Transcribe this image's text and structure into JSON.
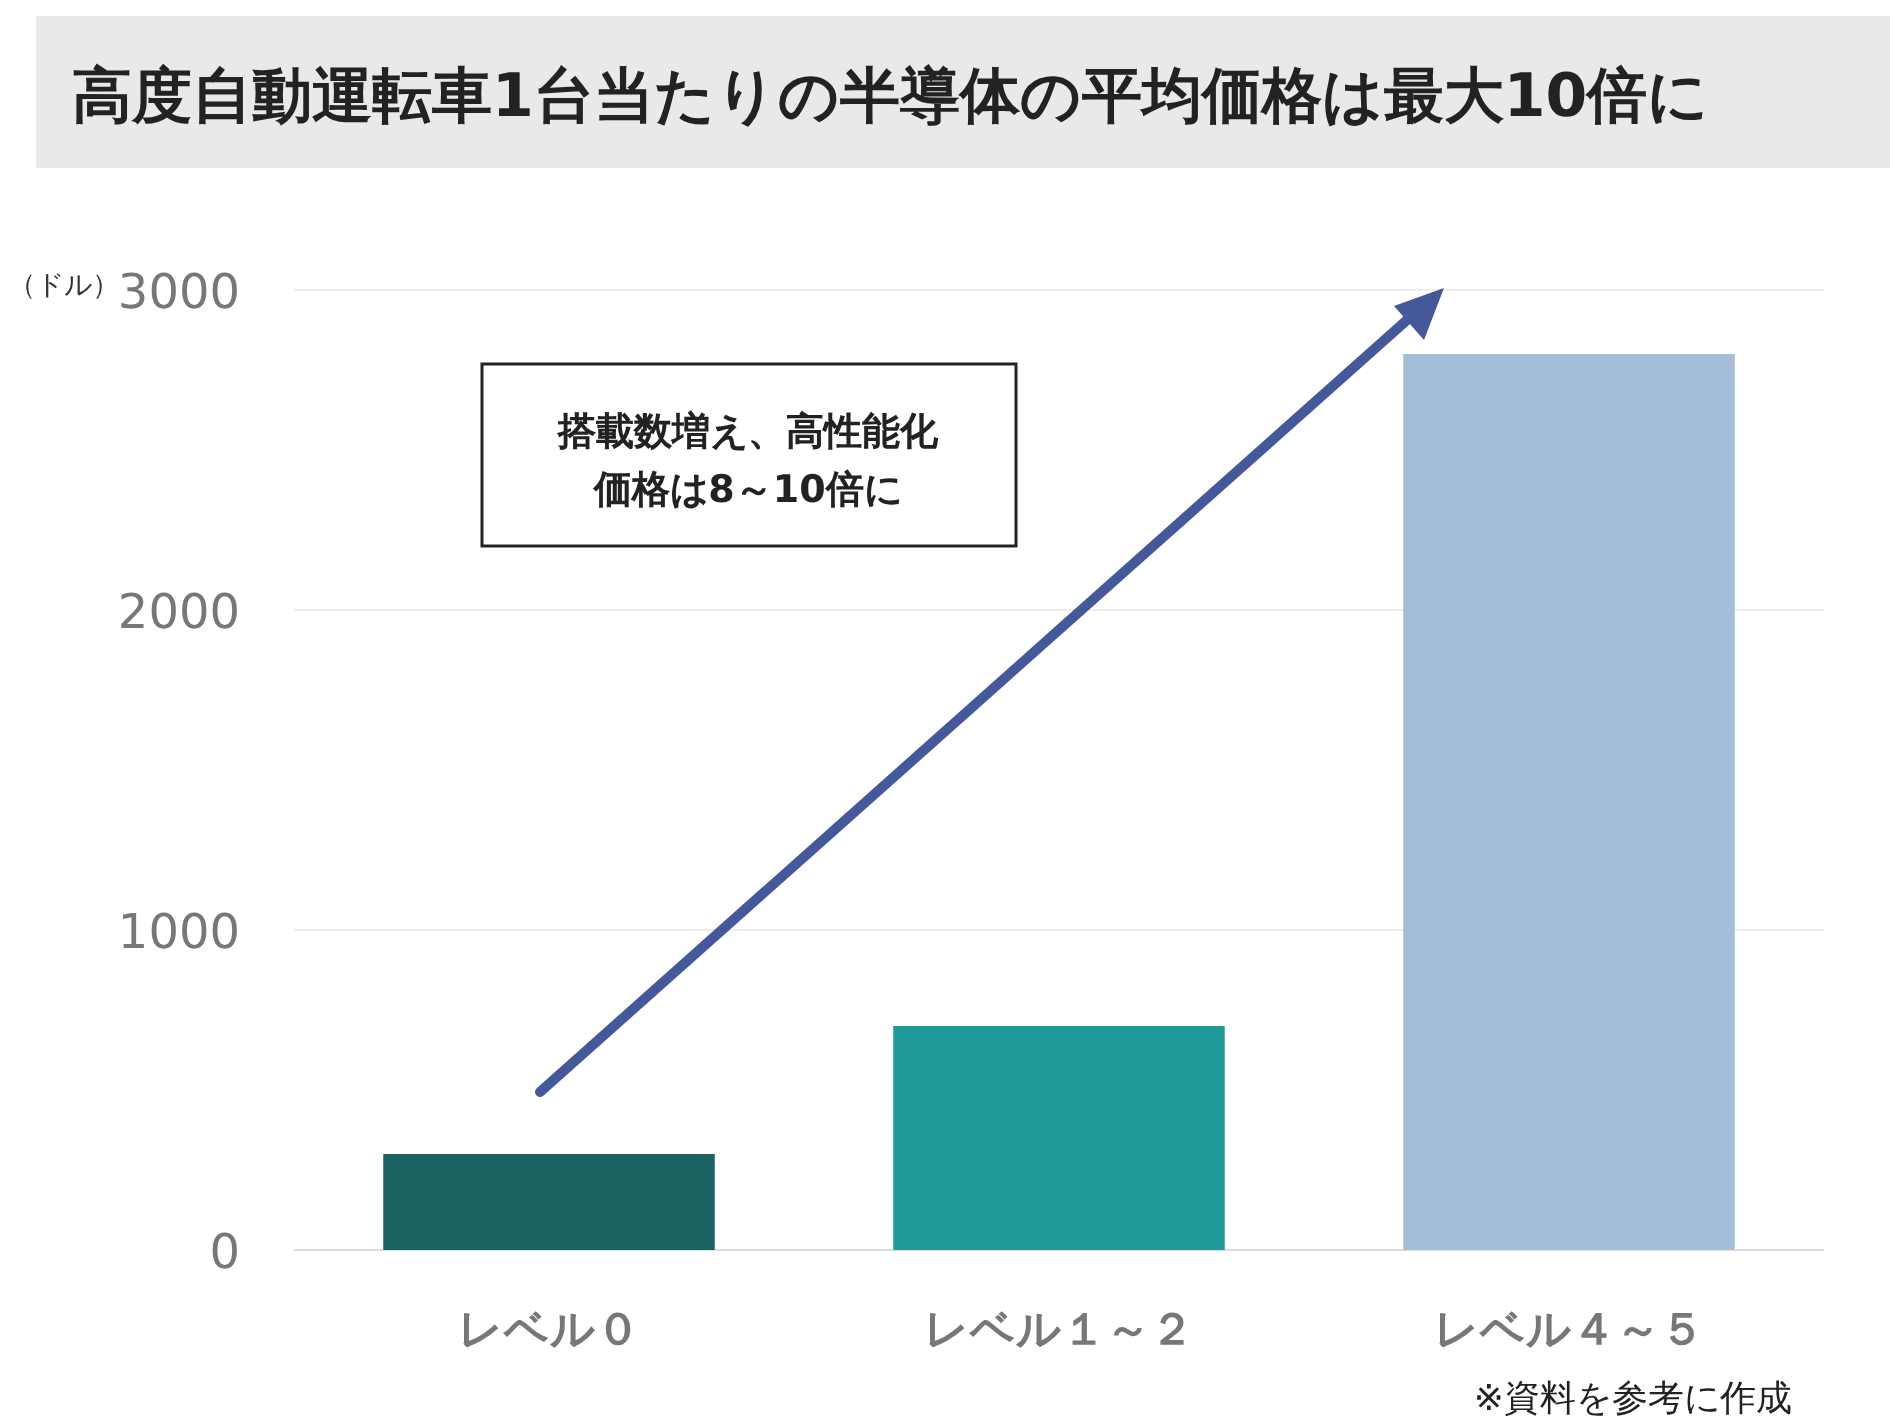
{
  "chart_data": {
    "type": "bar",
    "title": "高度自動運転車1台当たりの半導体の平均価格は最大10倍に",
    "ylabel": "（ドル）",
    "categories": [
      "レベル０",
      "レベル１～２",
      "レベル４～５"
    ],
    "values": [
      300,
      700,
      2800
    ],
    "colors": [
      "#1b6262",
      "#219a9c",
      "#a3bed6"
    ],
    "ylim": [
      0,
      3000
    ],
    "yticks": [
      0,
      1000,
      2000,
      3000
    ],
    "grid": "y",
    "annotations": [
      "搭載数増え、高性能化",
      "価格は8～10倍に",
      "※資料を参考に作成"
    ]
  }
}
